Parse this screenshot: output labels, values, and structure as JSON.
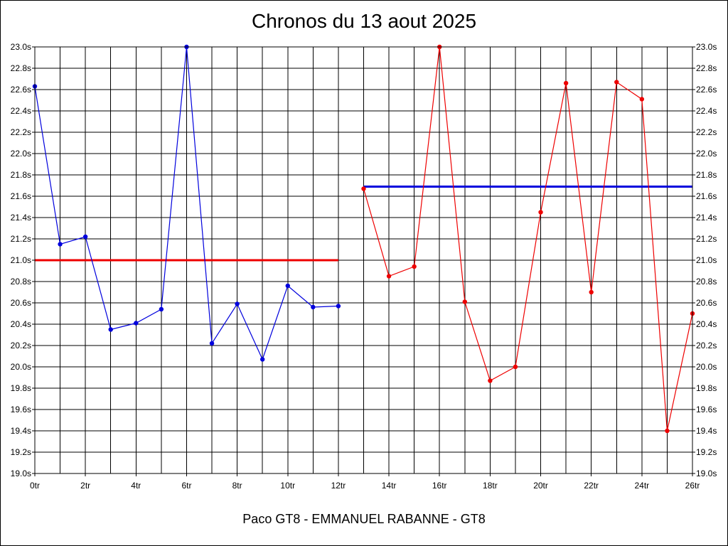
{
  "chart_data": {
    "type": "line",
    "title": "Chronos du 13 aout 2025",
    "xlabel": "Paco GT8 - EMMANUEL RABANNE - GT8",
    "ylabel": "",
    "xlim": [
      0,
      26
    ],
    "ylim": [
      19.0,
      23.0
    ],
    "grid": true,
    "x_ticks": [
      "0tr",
      "2tr",
      "4tr",
      "6tr",
      "8tr",
      "10tr",
      "12tr",
      "14tr",
      "16tr",
      "18tr",
      "20tr",
      "22tr",
      "24tr",
      "26tr"
    ],
    "y_ticks": [
      "19.0s",
      "19.2s",
      "19.4s",
      "19.6s",
      "19.8s",
      "20.0s",
      "20.2s",
      "20.4s",
      "20.6s",
      "20.8s",
      "21.0s",
      "21.2s",
      "21.4s",
      "21.6s",
      "21.8s",
      "22.0s",
      "22.2s",
      "22.4s",
      "22.6s",
      "22.8s",
      "23.0s"
    ],
    "series": [
      {
        "color": "#0000dd",
        "x": [
          0,
          1,
          2,
          3,
          4,
          5,
          6,
          7,
          8,
          9,
          10,
          11,
          12
        ],
        "values": [
          22.63,
          21.15,
          21.22,
          20.35,
          20.41,
          20.54,
          23.0,
          20.22,
          20.59,
          20.07,
          20.76,
          20.56,
          20.57
        ]
      },
      {
        "color": "#ee0000",
        "x": [
          13,
          14,
          15,
          16,
          17,
          18,
          19,
          20,
          21,
          22,
          23,
          24,
          25,
          26
        ],
        "values": [
          21.67,
          20.85,
          20.94,
          23.0,
          20.61,
          19.87,
          20.0,
          21.45,
          22.66,
          20.7,
          22.67,
          22.51,
          19.4,
          20.5
        ]
      }
    ],
    "reference_lines": [
      {
        "color": "#ee0000",
        "x_start": 0,
        "x_end": 12,
        "value": 21.0
      },
      {
        "color": "#0000dd",
        "x_start": 13,
        "x_end": 26,
        "value": 21.69
      }
    ]
  }
}
